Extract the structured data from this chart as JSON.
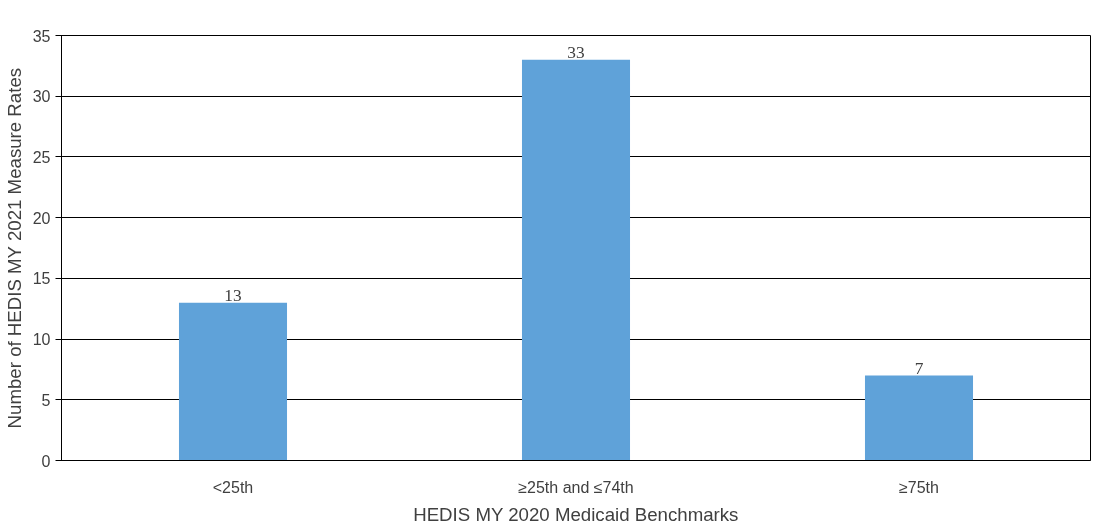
{
  "chart_data": {
    "type": "bar",
    "xlabel": "HEDIS MY 2020 Medicaid Benchmarks",
    "ylabel": "Number of HEDIS MY 2021 Measure Rates",
    "categories": [
      "<25th",
      "≥25th and ≤74th",
      "≥75th"
    ],
    "values": [
      13,
      33,
      7
    ],
    "color": "#5fa2d9",
    "ylim": [
      0,
      35
    ],
    "yticks": [
      0,
      5,
      10,
      15,
      20,
      25,
      30,
      35
    ],
    "grid": "y",
    "data_labels": true
  }
}
